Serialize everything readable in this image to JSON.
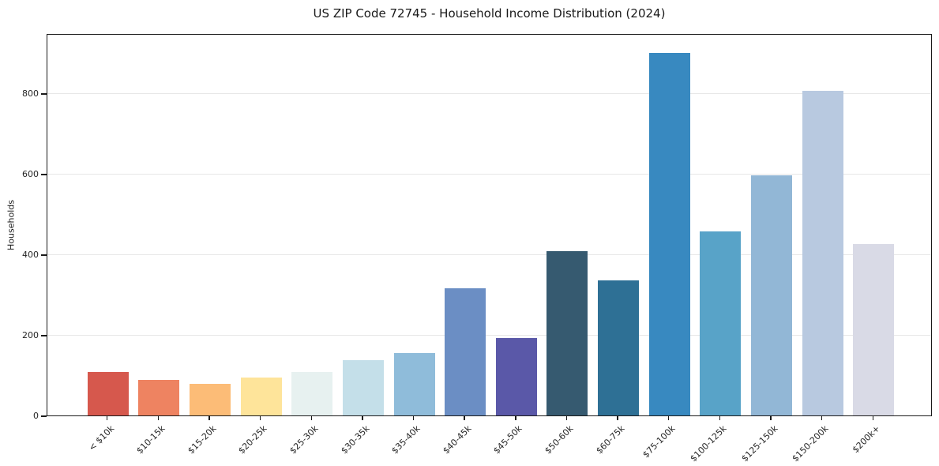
{
  "chart_data": {
    "type": "bar",
    "title": "US ZIP Code 72745 - Household Income Distribution (2024)",
    "xlabel": "",
    "ylabel": "Households",
    "categories": [
      "< $10k",
      "$10-15k",
      "$15-20k",
      "$20-25k",
      "$25-30k",
      "$30-35k",
      "$35-40k",
      "$40-45k",
      "$45-50k",
      "$50-60k",
      "$60-75k",
      "$75-100k",
      "$100-125k",
      "$125-150k",
      "$150-200k",
      "$200k+"
    ],
    "values": [
      108,
      88,
      78,
      95,
      108,
      137,
      154,
      315,
      193,
      408,
      336,
      900,
      457,
      597,
      806,
      425
    ],
    "bar_colors": [
      "#d6584d",
      "#ee8361",
      "#fcbc77",
      "#fee49a",
      "#e7f1f0",
      "#c4dfe9",
      "#8fbcda",
      "#6b8ec4",
      "#5a58a8",
      "#365a70",
      "#2e7095",
      "#3889c0",
      "#58a3c8",
      "#92b7d6",
      "#b8c9e0",
      "#d9dae6"
    ],
    "yticks": [
      0,
      200,
      400,
      600,
      800
    ],
    "ylim": [
      0,
      949
    ],
    "grid": "horizontal-light",
    "legend": "none",
    "background_color": "#ffffff",
    "text_color": "#1a1a1a"
  }
}
